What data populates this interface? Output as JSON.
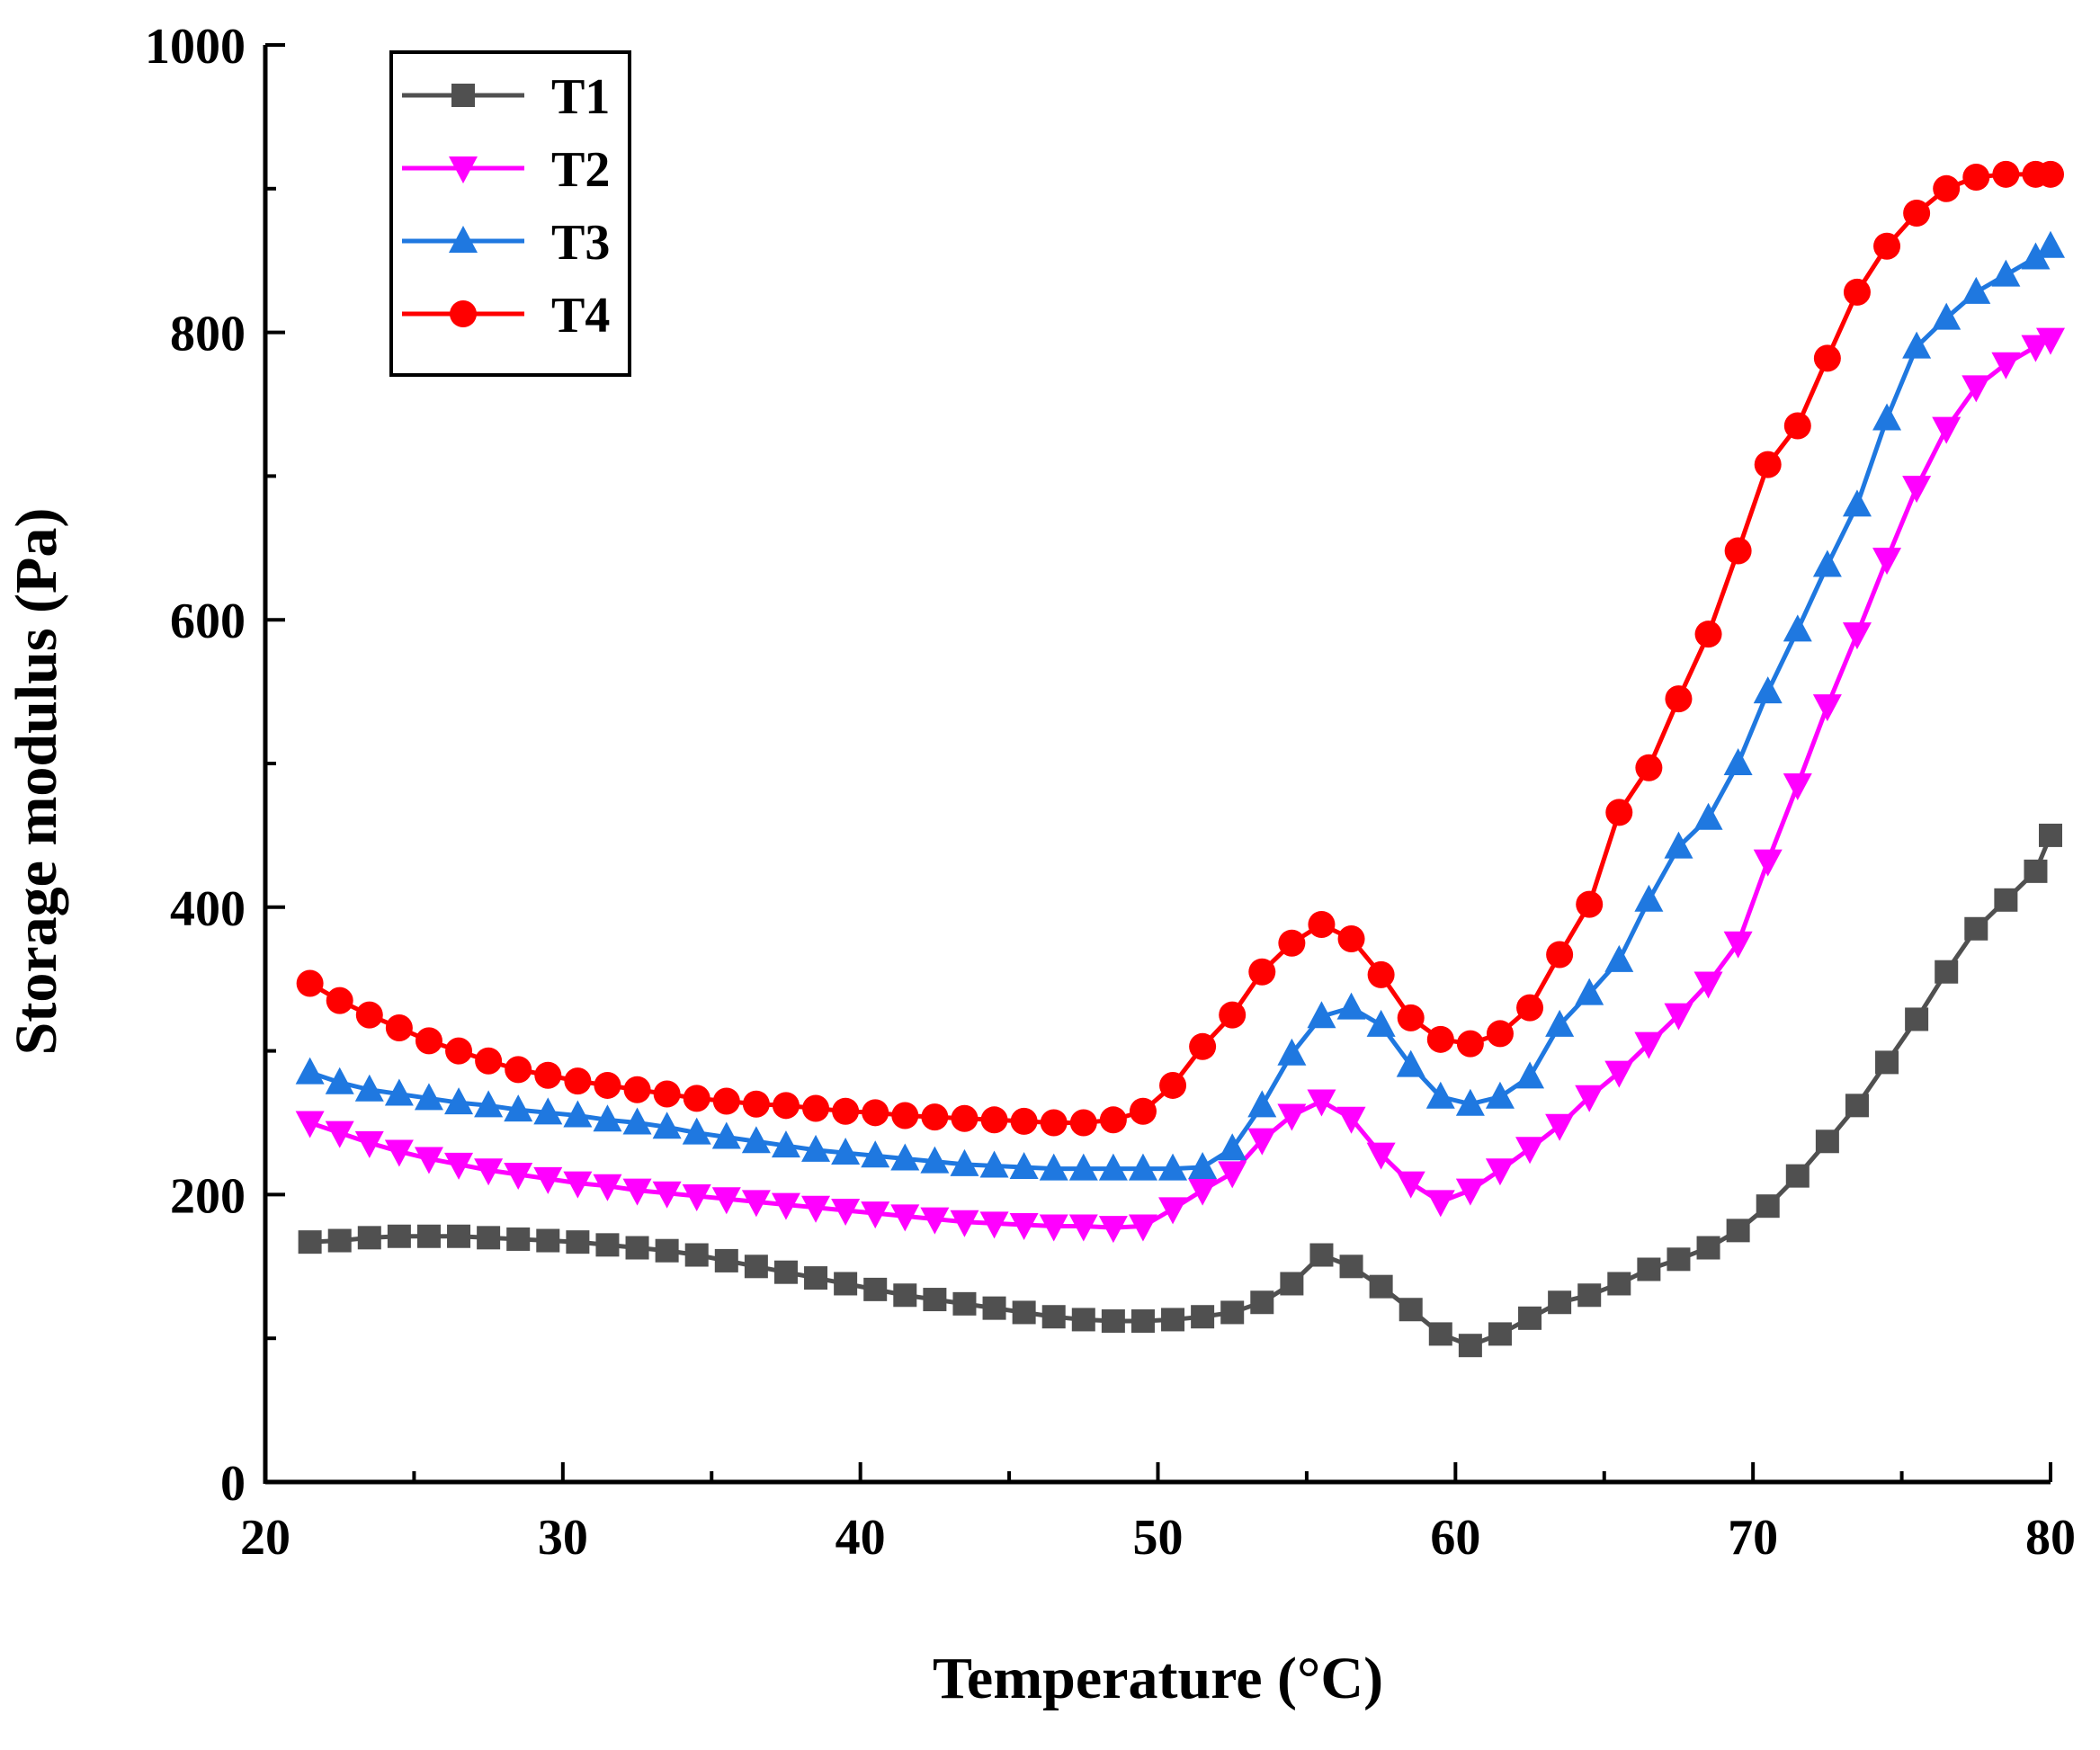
{
  "chart_data": {
    "type": "line",
    "title": "",
    "xlabel": "Temperature (°C)",
    "ylabel": "Storage modulus (Pa)",
    "xlim": [
      20,
      80
    ],
    "ylim": [
      0,
      1000
    ],
    "xticks": [
      "20",
      "30",
      "40",
      "50",
      "60",
      "70",
      "80"
    ],
    "yticks": [
      "0",
      "200",
      "400",
      "600",
      "800",
      "1000"
    ],
    "grid": false,
    "legend_position": "top-left",
    "x": [
      21.5,
      22.5,
      23.5,
      24.5,
      25.5,
      26.5,
      27.5,
      28.5,
      29.5,
      30.5,
      31.5,
      32.5,
      33.5,
      34.5,
      35.5,
      36.5,
      37.5,
      38.5,
      39.5,
      40.5,
      41.5,
      42.5,
      43.5,
      44.5,
      45.5,
      46.5,
      47.5,
      48.5,
      49.5,
      50.5,
      51.5,
      52.5,
      53.5,
      54.5,
      55.5,
      56.5,
      57.5,
      58.5,
      59.5,
      60.5,
      61.5,
      62.5,
      63.5,
      64.5,
      65.5,
      66.5,
      67.5,
      68.5,
      69.5,
      70.5,
      71.5,
      72.5,
      73.5,
      74.5,
      75.5,
      76.5,
      77.5,
      78.5,
      79.5,
      80.0
    ],
    "series": [
      {
        "name": "T1",
        "color": "#505050",
        "marker": "square",
        "values": [
          167,
          168,
          170,
          171,
          171,
          171,
          170,
          169,
          168,
          167,
          165,
          163,
          161,
          158,
          154,
          150,
          146,
          142,
          138,
          134,
          130,
          127,
          124,
          121,
          118,
          115,
          113,
          112,
          112,
          113,
          115,
          118,
          125,
          138,
          158,
          150,
          136,
          120,
          103,
          95,
          103,
          114,
          125,
          130,
          138,
          148,
          155,
          163,
          175,
          192,
          213,
          237,
          262,
          292,
          322,
          355,
          385,
          405,
          425,
          450
        ]
      },
      {
        "name": "T2",
        "color": "#ff00ff",
        "marker": "triangle-down",
        "values": [
          250,
          243,
          236,
          230,
          225,
          221,
          217,
          214,
          211,
          208,
          206,
          203,
          201,
          199,
          197,
          195,
          193,
          191,
          189,
          187,
          185,
          183,
          181,
          180,
          179,
          178,
          178,
          177,
          178,
          190,
          203,
          215,
          238,
          255,
          265,
          253,
          228,
          208,
          195,
          203,
          217,
          232,
          248,
          268,
          285,
          305,
          325,
          347,
          375,
          432,
          485,
          540,
          590,
          642,
          692,
          733,
          762,
          778,
          790,
          795
        ]
      },
      {
        "name": "T3",
        "color": "#1f78e0",
        "marker": "triangle-up",
        "values": [
          285,
          278,
          273,
          270,
          267,
          264,
          262,
          259,
          257,
          255,
          252,
          250,
          247,
          243,
          240,
          237,
          234,
          231,
          229,
          227,
          225,
          223,
          221,
          220,
          219,
          218,
          218,
          218,
          218,
          218,
          219,
          232,
          262,
          298,
          324,
          330,
          318,
          290,
          268,
          263,
          268,
          282,
          318,
          340,
          363,
          405,
          442,
          462,
          500,
          550,
          593,
          638,
          680,
          740,
          790,
          810,
          828,
          840,
          852,
          860
        ]
      },
      {
        "name": "T4",
        "color": "#ff0000",
        "marker": "circle",
        "values": [
          347,
          335,
          325,
          316,
          307,
          300,
          293,
          287,
          283,
          279,
          276,
          273,
          270,
          267,
          265,
          263,
          262,
          260,
          258,
          257,
          255,
          254,
          253,
          252,
          251,
          250,
          250,
          252,
          258,
          276,
          303,
          325,
          355,
          375,
          388,
          378,
          353,
          323,
          308,
          305,
          312,
          330,
          367,
          402,
          466,
          497,
          545,
          590,
          648,
          708,
          735,
          782,
          828,
          860,
          883,
          900,
          908,
          910,
          910,
          910
        ]
      }
    ]
  }
}
